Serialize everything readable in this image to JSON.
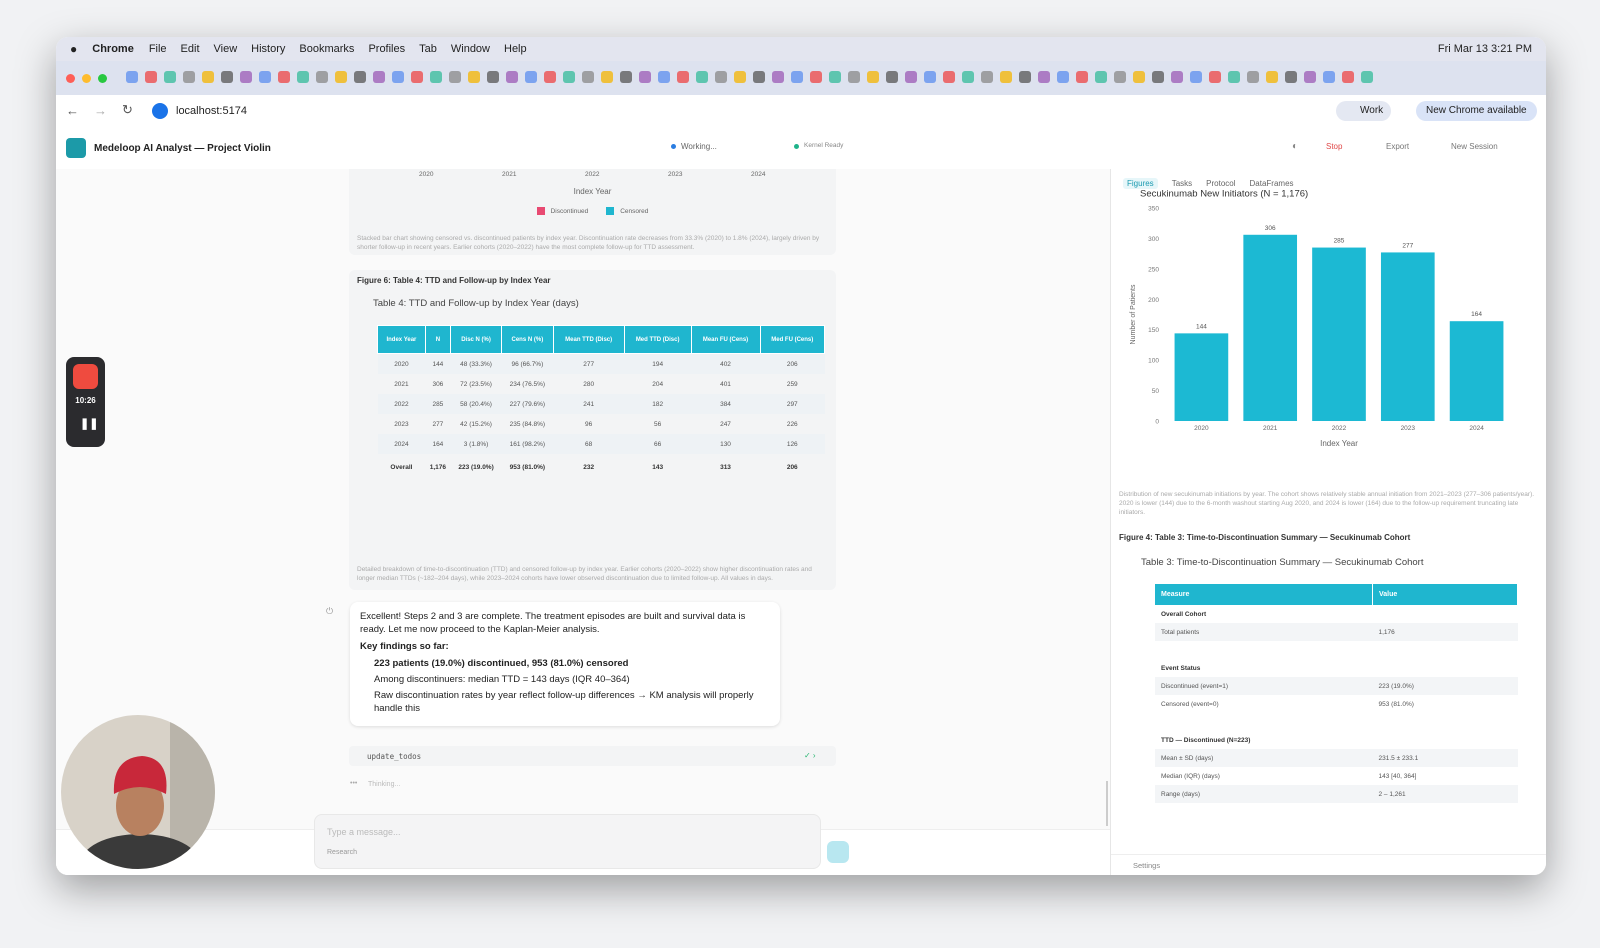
{
  "menu_bar": {
    "app": "Chrome",
    "items": [
      "File",
      "Edit",
      "View",
      "History",
      "Bookmarks",
      "Profiles",
      "Tab",
      "Window",
      "Help"
    ],
    "clock": "Fri Mar 13  3:21 PM"
  },
  "browser": {
    "url": "localhost:5174",
    "profile": "Work",
    "update": "New Chrome available"
  },
  "app_header": {
    "title": "Medeloop AI Analyst — Project Violin",
    "status": "Working...",
    "kernel": "Kernel Ready",
    "stop": "Stop",
    "export": "Export",
    "new_session": "New Session"
  },
  "recorder": {
    "time": "10:26"
  },
  "top_figure": {
    "x_labels": [
      "2020",
      "2021",
      "2022",
      "2023",
      "2024"
    ],
    "x_label": "Index Year",
    "legend": [
      "Discontinued",
      "Censored"
    ],
    "caption": "Stacked bar chart showing censored vs. discontinued patients by index year. Discontinuation rate decreases from 33.3% (2020) to 1.8% (2024), largely driven by shorter follow-up in recent years. Earlier cohorts (2020–2022) have the most complete follow-up for TTD assessment."
  },
  "figure6": {
    "heading": "Figure 6: Table 4: TTD and Follow-up by Index Year",
    "title": "Table 4: TTD and Follow-up by Index Year (days)",
    "columns": [
      "Index Year",
      "N",
      "Disc N (%)",
      "Cens N (%)",
      "Mean TTD (Disc)",
      "Med TTD (Disc)",
      "Mean FU (Cens)",
      "Med FU (Cens)"
    ],
    "rows": [
      [
        "2020",
        "144",
        "48 (33.3%)",
        "96 (66.7%)",
        "277",
        "194",
        "402",
        "206"
      ],
      [
        "2021",
        "306",
        "72 (23.5%)",
        "234 (76.5%)",
        "280",
        "204",
        "401",
        "259"
      ],
      [
        "2022",
        "285",
        "58 (20.4%)",
        "227 (79.6%)",
        "241",
        "182",
        "384",
        "297"
      ],
      [
        "2023",
        "277",
        "42 (15.2%)",
        "235 (84.8%)",
        "96",
        "56",
        "247",
        "226"
      ],
      [
        "2024",
        "164",
        "3 (1.8%)",
        "161 (98.2%)",
        "68",
        "66",
        "130",
        "126"
      ],
      [
        "Overall",
        "1,176",
        "223 (19.0%)",
        "953 (81.0%)",
        "232",
        "143",
        "313",
        "206"
      ]
    ],
    "caption": "Detailed breakdown of time-to-discontinuation (TTD) and censored follow-up by index year. Earlier cohorts (2020–2022) show higher discontinuation rates and longer median TTDs (~182–204 days), while 2023–2024 cohorts have lower observed discontinuation due to limited follow-up. All values in days."
  },
  "message": {
    "intro": "Excellent! Steps 2 and 3 are complete. The treatment episodes are built and survival data is ready. Let me now proceed to the Kaplan-Meier analysis.",
    "findings_heading": "Key findings so far:",
    "findings": [
      "223 patients (19.0%) discontinued, 953 (81.0%) censored",
      "Among discontinuers: median TTD = 143 days (IQR 40–364)",
      "Raw discontinuation rates by year reflect follow-up differences → KM analysis will properly handle this"
    ]
  },
  "tool_call": "update_todos",
  "thinking": "Thinking...",
  "composer": {
    "placeholder": "Type a message...",
    "mode": "Research"
  },
  "right_panel": {
    "tabs": [
      "Figures",
      "Tasks",
      "Protocol",
      "DataFrames"
    ],
    "caption": "Distribution of new secukinumab initiations by year. The cohort shows relatively stable annual initiation from 2021–2023 (277–306 patients/year). 2020 is lower (144) due to the 6-month washout starting Aug 2020, and 2024 is lower (164) due to the follow-up requirement truncating late initiators.",
    "figure4_heading": "Figure 4: Table 3: Time-to-Discontinuation Summary — Secukinumab Cohort",
    "table3": {
      "title": "Table 3: Time-to-Discontinuation Summary — Secukinumab Cohort",
      "columns": [
        "Measure",
        "Value"
      ],
      "sections": [
        {
          "name": "Overall Cohort",
          "rows": [
            [
              "Total patients",
              "1,176"
            ]
          ]
        },
        {
          "name": "Event Status",
          "rows": [
            [
              "Discontinued (event=1)",
              "223 (19.0%)"
            ],
            [
              "Censored (event=0)",
              "953 (81.0%)"
            ]
          ]
        },
        {
          "name": "TTD — Discontinued (N=223)",
          "rows": [
            [
              "Mean ± SD (days)",
              "231.5 ± 233.1"
            ],
            [
              "Median (IQR) (days)",
              "143 [40, 364]"
            ],
            [
              "Range (days)",
              "2 – 1,261"
            ]
          ]
        }
      ]
    },
    "settings": "Settings"
  },
  "chart_data": {
    "type": "bar",
    "title": "Secukinumab New Initiators (N = 1,176)",
    "x_label": "Index Year",
    "y_label": "Number of Patients",
    "categories": [
      "2020",
      "2021",
      "2022",
      "2023",
      "2024"
    ],
    "values": [
      144,
      306,
      285,
      277,
      164
    ],
    "color": "#1cb9d3",
    "ylim": [
      0,
      350
    ],
    "yticks": [
      0,
      50,
      100,
      150,
      200,
      250,
      300,
      350
    ],
    "grid": false
  }
}
